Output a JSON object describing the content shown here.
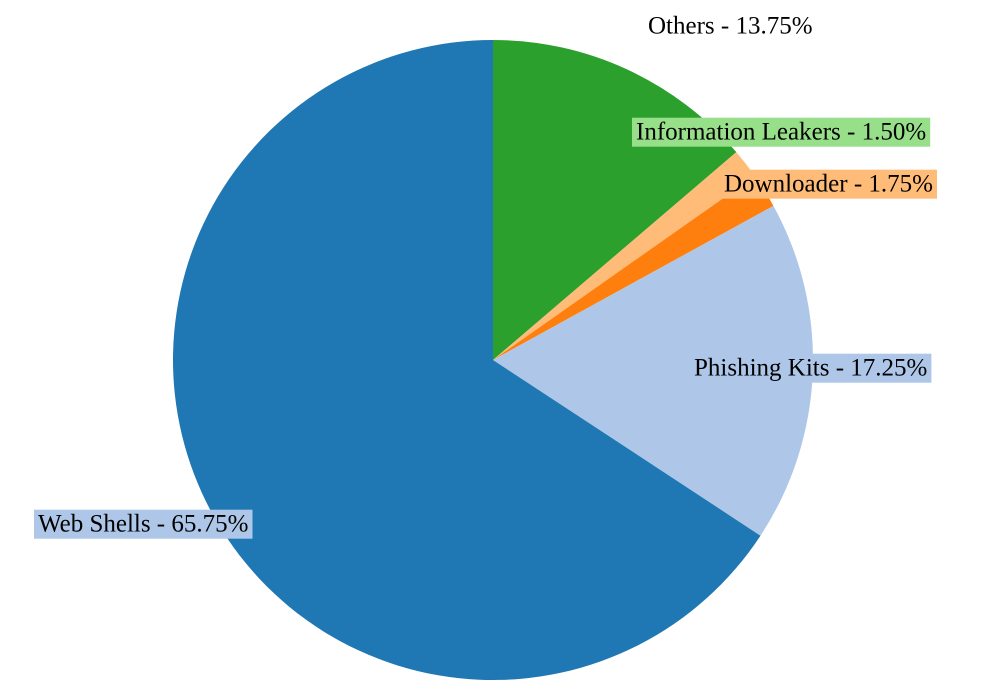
{
  "chart_data": {
    "type": "pie",
    "title": "",
    "start_angle_deg": 0,
    "direction": "clockwise",
    "slices": [
      {
        "label": "Others - 13.75%",
        "name": "Others",
        "value": 13.75,
        "color": "#2ca02c",
        "label_bg": "#ffffff"
      },
      {
        "label": "Information Leakers - 1.50%",
        "name": "Information Leakers",
        "value": 1.5,
        "color": "#ffbb78",
        "label_bg": "#98df8a"
      },
      {
        "label": "Downloader - 1.75%",
        "name": "Downloader",
        "value": 1.75,
        "color": "#ff7f0e",
        "label_bg": "#ffbb78"
      },
      {
        "label": "Phishing Kits - 17.25%",
        "name": "Phishing Kits",
        "value": 17.25,
        "color": "#aec7e8",
        "label_bg": "#aec7e8"
      },
      {
        "label": "Web Shells - 65.75%",
        "name": "Web Shells",
        "value": 65.75,
        "color": "#1f77b4",
        "label_bg": "#aec7e8"
      }
    ]
  }
}
